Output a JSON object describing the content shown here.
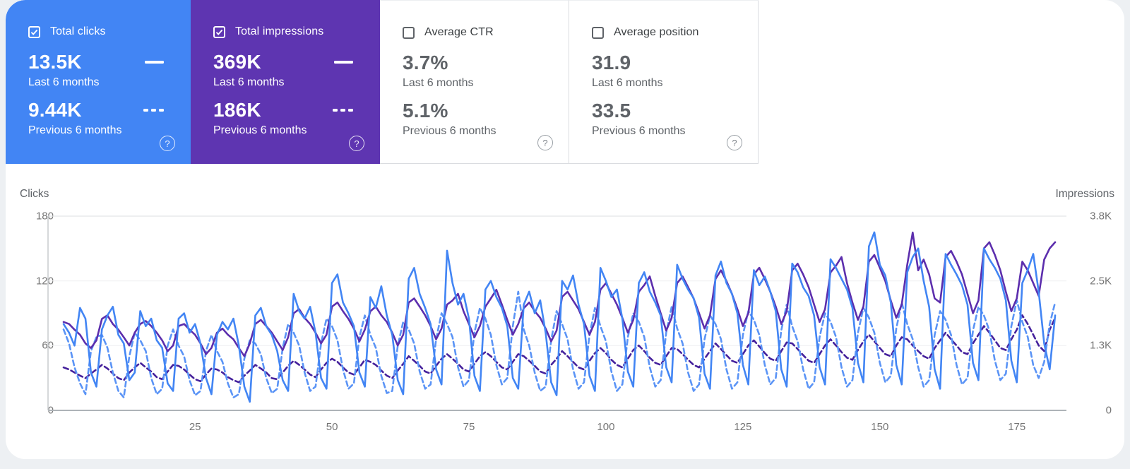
{
  "cards": [
    {
      "title": "Total clicks",
      "checked": true,
      "selected": true,
      "accent": "#4285f4",
      "current_value": "13.5K",
      "current_label": "Last 6 months",
      "previous_value": "9.44K",
      "previous_label": "Previous 6 months"
    },
    {
      "title": "Total impressions",
      "checked": true,
      "selected": true,
      "accent": "#5e35b1",
      "current_value": "369K",
      "current_label": "Last 6 months",
      "previous_value": "186K",
      "previous_label": "Previous 6 months"
    },
    {
      "title": "Average CTR",
      "checked": false,
      "selected": false,
      "accent": null,
      "current_value": "3.7%",
      "current_label": "Last 6 months",
      "previous_value": "5.1%",
      "previous_label": "Previous 6 months"
    },
    {
      "title": "Average position",
      "checked": false,
      "selected": false,
      "accent": null,
      "current_value": "31.9",
      "current_label": "Last 6 months",
      "previous_value": "33.5",
      "previous_label": "Previous 6 months"
    }
  ],
  "icons": {
    "help_glyph": "?"
  },
  "chart_data": {
    "type": "line",
    "left_axis": {
      "label": "Clicks",
      "min": 0,
      "max": 180,
      "ticks": [
        "180",
        "120",
        "60",
        "0"
      ],
      "tick_values": [
        180,
        120,
        60,
        0
      ]
    },
    "right_axis": {
      "label": "Impressions",
      "min": 0,
      "max": 3800,
      "ticks": [
        "3.8K",
        "2.5K",
        "1.3K",
        "0"
      ],
      "tick_values": [
        3800,
        2533,
        1267,
        0
      ]
    },
    "x_axis": {
      "n_points": 182,
      "ticks": [
        25,
        50,
        75,
        100,
        125,
        150,
        175
      ]
    },
    "grid": "horizontal-only",
    "legend_position": "in-cards",
    "series": [
      {
        "name": "Impressions - previous 6 months",
        "axis": "right",
        "style": "dashed",
        "color": "#45219c",
        "values": [
          840,
          800,
          740,
          680,
          630,
          720,
          800,
          890,
          820,
          720,
          630,
          590,
          740,
          840,
          930,
          840,
          760,
          650,
          610,
          760,
          890,
          870,
          800,
          700,
          610,
          570,
          700,
          820,
          800,
          740,
          650,
          590,
          550,
          680,
          780,
          890,
          820,
          740,
          630,
          610,
          740,
          870,
          970,
          890,
          800,
          700,
          650,
          800,
          930,
          1010,
          950,
          840,
          740,
          700,
          840,
          990,
          950,
          890,
          780,
          680,
          630,
          780,
          910,
          1060,
          970,
          870,
          760,
          720,
          870,
          1010,
          1100,
          1010,
          910,
          800,
          760,
          910,
          1060,
          1140,
          1060,
          950,
          840,
          800,
          950,
          1100,
          1060,
          970,
          870,
          760,
          720,
          890,
          1010,
          1160,
          1060,
          950,
          840,
          800,
          970,
          1120,
          1220,
          1120,
          990,
          890,
          840,
          1010,
          1180,
          1270,
          1160,
          1030,
          930,
          890,
          1060,
          1220,
          1200,
          1100,
          990,
          890,
          840,
          1010,
          1160,
          1310,
          1200,
          1080,
          970,
          930,
          1100,
          1270,
          1370,
          1250,
          1120,
          1010,
          970,
          1160,
          1330,
          1310,
          1200,
          1080,
          970,
          930,
          1100,
          1270,
          1390,
          1270,
          1140,
          1030,
          990,
          1180,
          1350,
          1480,
          1350,
          1220,
          1100,
          1060,
          1270,
          1430,
          1390,
          1270,
          1160,
          1060,
          1010,
          1220,
          1370,
          1520,
          1390,
          1270,
          1140,
          1100,
          1310,
          1480,
          1650,
          1520,
          1370,
          1220,
          1180,
          1390,
          1580,
          1860,
          1690,
          1480,
          1270,
          1160,
          1580,
          1810
        ]
      },
      {
        "name": "Clicks - previous 6 months",
        "axis": "left",
        "style": "dashed",
        "color": "#5b94f6",
        "values": [
          75,
          62,
          40,
          25,
          15,
          55,
          68,
          70,
          58,
          35,
          18,
          12,
          50,
          72,
          65,
          55,
          30,
          15,
          20,
          60,
          75,
          60,
          50,
          28,
          14,
          18,
          55,
          70,
          55,
          45,
          25,
          12,
          15,
          48,
          65,
          62,
          52,
          30,
          16,
          20,
          58,
          80,
          72,
          60,
          35,
          18,
          22,
          62,
          85,
          78,
          65,
          38,
          20,
          25,
          68,
          88,
          70,
          58,
          32,
          16,
          18,
          60,
          82,
          75,
          62,
          36,
          20,
          24,
          66,
          90,
          80,
          68,
          40,
          22,
          28,
          72,
          95,
          85,
          70,
          42,
          24,
          30,
          78,
          110,
          75,
          60,
          35,
          18,
          22,
          65,
          92,
          80,
          66,
          38,
          20,
          26,
          70,
          95,
          78,
          64,
          36,
          18,
          24,
          68,
          90,
          82,
          68,
          40,
          22,
          28,
          72,
          96,
          76,
          62,
          35,
          18,
          24,
          66,
          88,
          80,
          66,
          38,
          20,
          26,
          70,
          92,
          84,
          70,
          42,
          24,
          30,
          74,
          98,
          78,
          64,
          38,
          20,
          26,
          68,
          90,
          82,
          68,
          40,
          22,
          28,
          72,
          95,
          86,
          72,
          44,
          26,
          32,
          76,
          100,
          80,
          66,
          40,
          22,
          28,
          70,
          92,
          84,
          70,
          42,
          24,
          30,
          74,
          96,
          88,
          74,
          46,
          28,
          34,
          78,
          102,
          82,
          68,
          42,
          30,
          45,
          80,
          100
        ]
      },
      {
        "name": "Impressions - last 6 months",
        "axis": "right",
        "style": "solid",
        "color": "#5c2ead",
        "values": [
          1730,
          1690,
          1580,
          1480,
          1310,
          1220,
          1370,
          1790,
          1860,
          1690,
          1580,
          1430,
          1270,
          1520,
          1690,
          1750,
          1650,
          1520,
          1370,
          1160,
          1270,
          1650,
          1690,
          1580,
          1480,
          1310,
          1100,
          1220,
          1520,
          1600,
          1480,
          1390,
          1220,
          1060,
          1310,
          1690,
          1770,
          1650,
          1520,
          1350,
          1180,
          1430,
          1900,
          1980,
          1810,
          1690,
          1520,
          1310,
          1480,
          2030,
          2110,
          1940,
          1790,
          1600,
          1350,
          1580,
          1940,
          2030,
          1860,
          1730,
          1520,
          1270,
          1480,
          2110,
          2190,
          2030,
          1860,
          1650,
          1390,
          1600,
          2070,
          2150,
          2280,
          1940,
          1690,
          1430,
          1650,
          2030,
          2190,
          2360,
          2070,
          1770,
          1480,
          1690,
          2000,
          2110,
          1940,
          1810,
          1600,
          1350,
          1560,
          2220,
          2320,
          2150,
          1980,
          1730,
          1480,
          1730,
          2360,
          2490,
          2280,
          2070,
          1810,
          1520,
          1770,
          2320,
          2450,
          2620,
          2240,
          1900,
          1560,
          1810,
          2490,
          2620,
          2410,
          2190,
          1900,
          1600,
          1860,
          2570,
          2740,
          2530,
          2280,
          1980,
          1650,
          1900,
          2660,
          2790,
          2570,
          2320,
          2030,
          1690,
          1940,
          2740,
          2870,
          2660,
          2410,
          2070,
          1730,
          1980,
          2700,
          2830,
          3000,
          2490,
          2110,
          1770,
          2030,
          2910,
          3040,
          2790,
          2530,
          2150,
          1810,
          2070,
          2850,
          3480,
          2740,
          2950,
          2660,
          2190,
          2110,
          3000,
          3120,
          2910,
          2660,
          2280,
          1900,
          2150,
          3170,
          3290,
          3040,
          2740,
          2320,
          1940,
          2190,
          2910,
          2740,
          2490,
          2240,
          2950,
          3170,
          3290
        ]
      },
      {
        "name": "Clicks - last 6 months",
        "axis": "left",
        "style": "solid",
        "color": "#4285f4",
        "values": [
          80,
          72,
          60,
          95,
          85,
          35,
          22,
          75,
          88,
          96,
          70,
          62,
          28,
          35,
          92,
          78,
          85,
          65,
          58,
          25,
          18,
          85,
          90,
          72,
          80,
          62,
          30,
          15,
          70,
          82,
          75,
          85,
          60,
          22,
          8,
          88,
          95,
          78,
          70,
          55,
          28,
          18,
          108,
          92,
          85,
          96,
          72,
          30,
          20,
          118,
          126,
          100,
          90,
          78,
          35,
          22,
          105,
          95,
          115,
          88,
          70,
          28,
          15,
          122,
          132,
          108,
          95,
          80,
          38,
          24,
          148,
          118,
          98,
          108,
          85,
          32,
          18,
          112,
          120,
          105,
          95,
          78,
          30,
          20,
          98,
          110,
          90,
          102,
          72,
          26,
          14,
          120,
          112,
          125,
          98,
          80,
          32,
          18,
          132,
          120,
          105,
          112,
          85,
          36,
          22,
          118,
          128,
          110,
          100,
          88,
          40,
          26,
          135,
          122,
          112,
          104,
          86,
          34,
          20,
          125,
          138,
          118,
          108,
          90,
          42,
          24,
          130,
          116,
          124,
          110,
          92,
          38,
          22,
          136,
          128,
          114,
          106,
          88,
          40,
          24,
          140,
          132,
          122,
          112,
          95,
          44,
          26,
          152,
          165,
          135,
          125,
          100,
          42,
          24,
          128,
          142,
          150,
          120,
          96,
          38,
          20,
          145,
          135,
          126,
          116,
          98,
          44,
          28,
          150,
          140,
          132,
          122,
          102,
          46,
          26,
          118,
          130,
          145,
          110,
          62,
          38,
          88
        ]
      }
    ]
  }
}
